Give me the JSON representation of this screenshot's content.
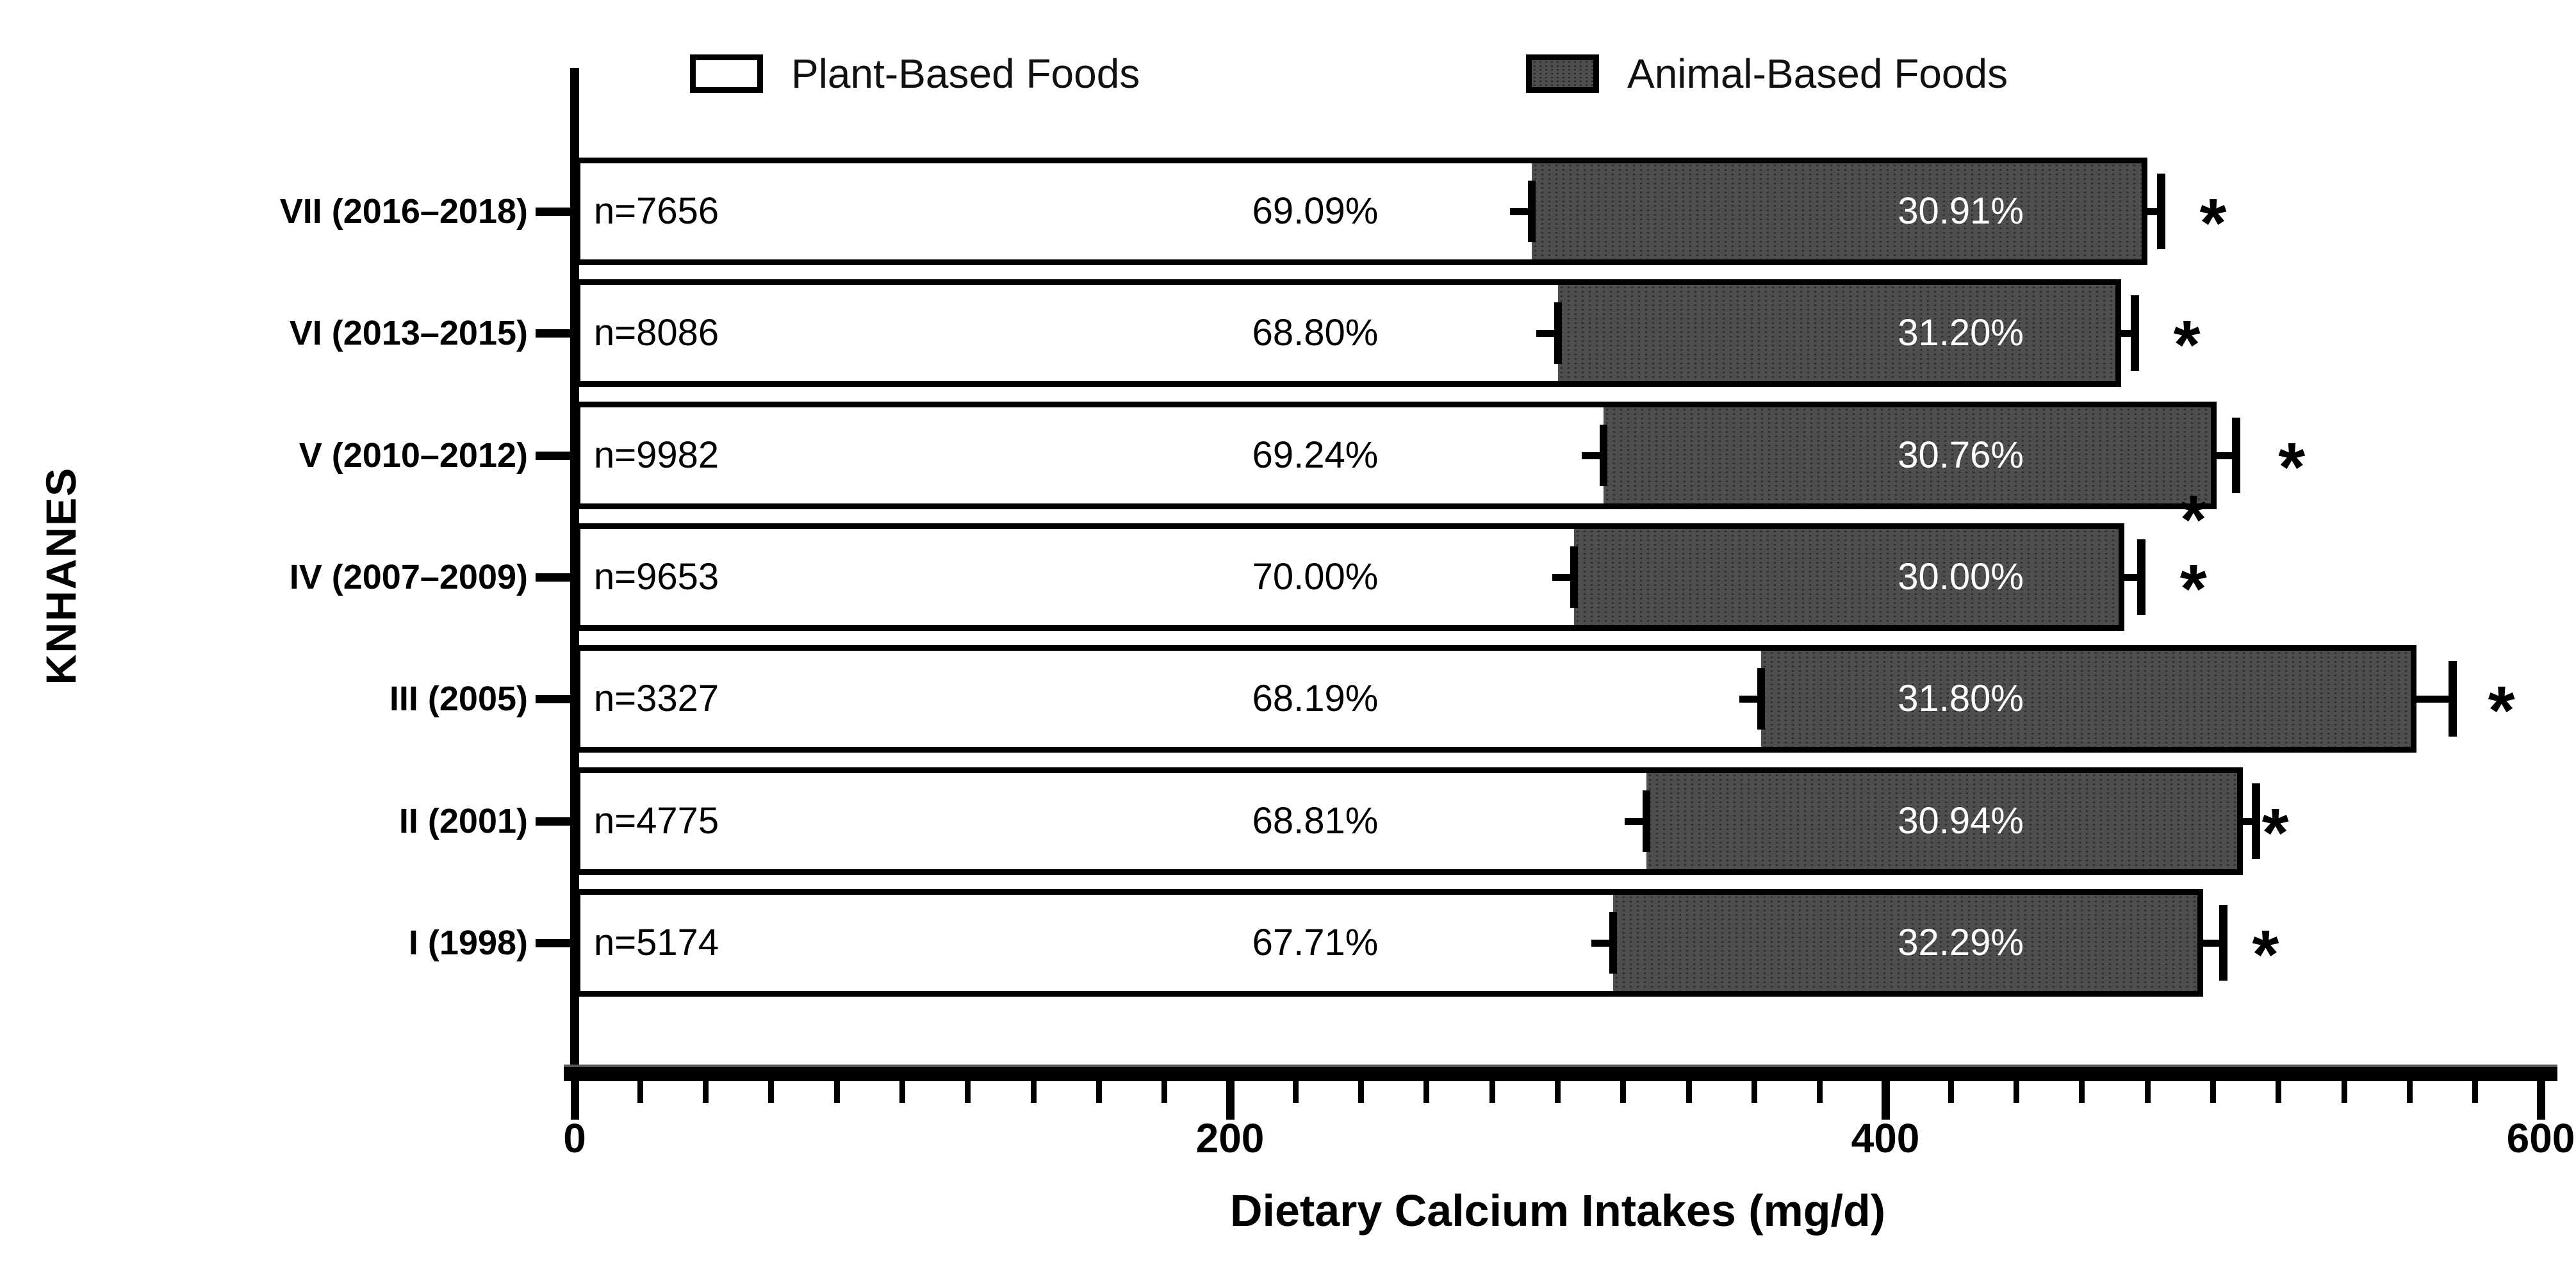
{
  "legend": {
    "items": [
      {
        "label": "Plant-Based Foods",
        "swatch": "white-outlined"
      },
      {
        "label": "Animal-Based Foods",
        "swatch": "dark-gray-dotted"
      }
    ]
  },
  "axes": {
    "x": {
      "title": "Dietary Calcium Intakes (mg/d)",
      "min": 0,
      "max": 600,
      "major_ticks": [
        0,
        200,
        400,
        600
      ],
      "major_tick_labels": [
        "0",
        "200",
        "400",
        "600"
      ],
      "minor_tick_step": 20
    },
    "y": {
      "title": "KNHANES"
    }
  },
  "chart_data": {
    "type": "bar",
    "orientation": "horizontal",
    "stacked": true,
    "title": "",
    "xlabel": "Dietary Calcium Intakes (mg/d)",
    "ylabel": "KNHANES",
    "xlim": [
      0,
      600
    ],
    "legend_position": "top",
    "grid": false,
    "categories": [
      "VII (2016–2018)",
      "VI (2013–2015)",
      "V (2010–2012)",
      "IV (2007–2009)",
      "III (2005)",
      "II (2001)",
      "I (1998)"
    ],
    "series": [
      {
        "name": "Plant-Based Foods",
        "values_mg_est": [
          292,
          300,
          314,
          305,
          362,
          327,
          317
        ]
      },
      {
        "name": "Animal-Based Foods",
        "values_mg_est": [
          188,
          172,
          187,
          168,
          200,
          182,
          180
        ]
      }
    ],
    "totals_mg_est": [
      480,
      472,
      501,
      473,
      562,
      509,
      497
    ],
    "rows": [
      {
        "category": "VII (2016–2018)",
        "n_label": "n=7656",
        "plant_pct": "69.09%",
        "animal_pct": "30.91%",
        "plant_mg": 292,
        "total_mg": 480,
        "err_cap_mg": 484,
        "sig": "*",
        "sig_at_mg": 500
      },
      {
        "category": "VI (2013–2015)",
        "n_label": "n=8086",
        "plant_pct": "68.80%",
        "animal_pct": "31.20%",
        "plant_mg": 300,
        "total_mg": 472,
        "err_cap_mg": 476,
        "sig": "*",
        "sig_at_mg": 492
      },
      {
        "category": "V (2010–2012)",
        "n_label": "n=9982",
        "plant_pct": "69.24%",
        "animal_pct": "30.76%",
        "plant_mg": 314,
        "total_mg": 501,
        "err_cap_mg": 507,
        "sig": "*",
        "sig_at_mg": 524,
        "extra_asterisk_at_mg": 494
      },
      {
        "category": "IV (2007–2009)",
        "n_label": "n=9653",
        "plant_pct": "70.00%",
        "animal_pct": "30.00%",
        "plant_mg": 305,
        "total_mg": 473,
        "err_cap_mg": 478,
        "sig": "*",
        "sig_at_mg": 494
      },
      {
        "category": "III (2005)",
        "n_label": "n=3327",
        "plant_pct": "68.19%",
        "animal_pct": "31.80%",
        "plant_mg": 362,
        "total_mg": 562,
        "err_cap_mg": 573,
        "sig": "*",
        "sig_at_mg": 588
      },
      {
        "category": "II (2001)",
        "n_label": "n=4775",
        "plant_pct": "68.81%",
        "animal_pct": "30.94%",
        "plant_mg": 327,
        "total_mg": 509,
        "err_cap_mg": 513,
        "sig": "*",
        "sig_at_mg": 519
      },
      {
        "category": "I (1998)",
        "n_label": "n=5174",
        "plant_pct": "67.71%",
        "animal_pct": "32.29%",
        "plant_mg": 317,
        "total_mg": 497,
        "err_cap_mg": 503,
        "sig": "*",
        "sig_at_mg": 516
      }
    ],
    "colors": {
      "plant_fill": "#ffffff",
      "animal_fill": "#4e4e4e",
      "outline": "#000000",
      "animal_text": "#ffffff",
      "text": "#000000"
    }
  }
}
